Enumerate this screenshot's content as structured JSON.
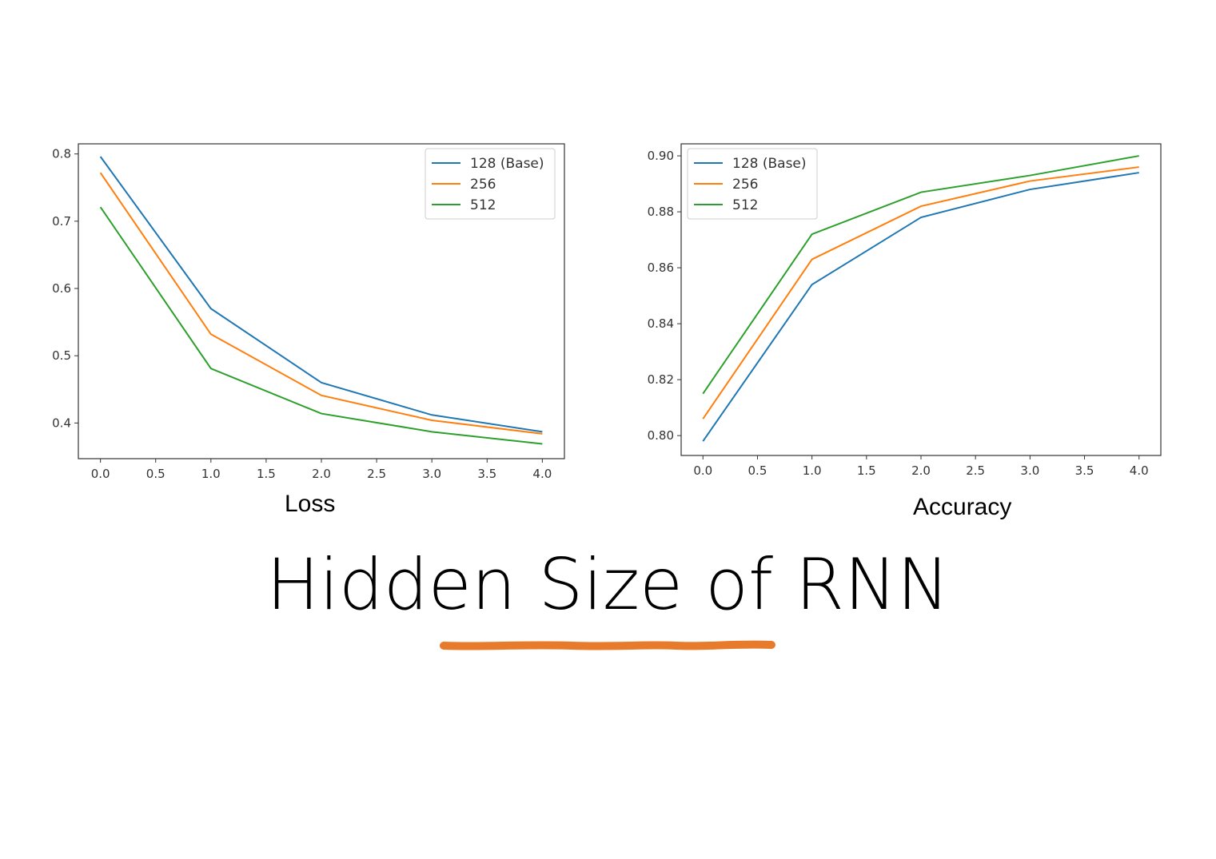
{
  "slide": {
    "title": "Hidden Size of RNN",
    "underline_color": "#E87A2B"
  },
  "chart_data": [
    {
      "type": "line",
      "caption": "Loss",
      "x": [
        0,
        1,
        2,
        3,
        4
      ],
      "xlim": [
        -0.2,
        4.2
      ],
      "ylim": [
        0.347,
        0.815
      ],
      "xticks": [
        "0.0",
        "0.5",
        "1.0",
        "1.5",
        "2.0",
        "2.5",
        "3.0",
        "3.5",
        "4.0"
      ],
      "yticks": [
        "0.4",
        "0.5",
        "0.6",
        "0.7",
        "0.8"
      ],
      "grid": false,
      "legend_position": "top-right",
      "series": [
        {
          "name": "128 (Base)",
          "color": "#1f77b4",
          "values": [
            0.796,
            0.57,
            0.46,
            0.412,
            0.387
          ]
        },
        {
          "name": "256",
          "color": "#ff7f0e",
          "values": [
            0.772,
            0.532,
            0.441,
            0.404,
            0.384
          ]
        },
        {
          "name": "512",
          "color": "#2ca02c",
          "values": [
            0.721,
            0.481,
            0.414,
            0.387,
            0.369
          ]
        }
      ]
    },
    {
      "type": "line",
      "caption": "Accuracy",
      "x": [
        0,
        1,
        2,
        3,
        4
      ],
      "xlim": [
        -0.2,
        4.2
      ],
      "ylim": [
        0.7929,
        0.9043
      ],
      "xticks": [
        "0.0",
        "0.5",
        "1.0",
        "1.5",
        "2.0",
        "2.5",
        "3.0",
        "3.5",
        "4.0"
      ],
      "yticks": [
        "0.80",
        "0.82",
        "0.84",
        "0.86",
        "0.88",
        "0.90"
      ],
      "grid": false,
      "legend_position": "top-left",
      "series": [
        {
          "name": "128 (Base)",
          "color": "#1f77b4",
          "values": [
            0.798,
            0.854,
            0.878,
            0.888,
            0.894
          ]
        },
        {
          "name": "256",
          "color": "#ff7f0e",
          "values": [
            0.806,
            0.863,
            0.882,
            0.891,
            0.896
          ]
        },
        {
          "name": "512",
          "color": "#2ca02c",
          "values": [
            0.815,
            0.872,
            0.887,
            0.893,
            0.9
          ]
        }
      ]
    }
  ]
}
